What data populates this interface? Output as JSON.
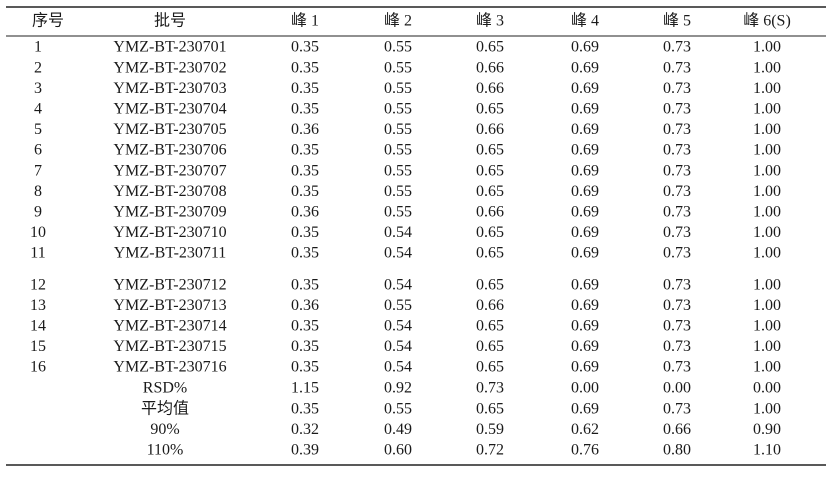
{
  "table": {
    "header": [
      "序号",
      "批号",
      "峰 1",
      "峰 2",
      "峰 3",
      "峰 4",
      "峰 5",
      "峰 6(S)"
    ],
    "rows": [
      [
        "1",
        "YMZ-BT-230701",
        "0.35",
        "0.55",
        "0.65",
        "0.69",
        "0.73",
        "1.00"
      ],
      [
        "2",
        "YMZ-BT-230702",
        "0.35",
        "0.55",
        "0.66",
        "0.69",
        "0.73",
        "1.00"
      ],
      [
        "3",
        "YMZ-BT-230703",
        "0.35",
        "0.55",
        "0.66",
        "0.69",
        "0.73",
        "1.00"
      ],
      [
        "4",
        "YMZ-BT-230704",
        "0.35",
        "0.55",
        "0.65",
        "0.69",
        "0.73",
        "1.00"
      ],
      [
        "5",
        "YMZ-BT-230705",
        "0.36",
        "0.55",
        "0.66",
        "0.69",
        "0.73",
        "1.00"
      ],
      [
        "6",
        "YMZ-BT-230706",
        "0.35",
        "0.55",
        "0.65",
        "0.69",
        "0.73",
        "1.00"
      ],
      [
        "7",
        "YMZ-BT-230707",
        "0.35",
        "0.55",
        "0.65",
        "0.69",
        "0.73",
        "1.00"
      ],
      [
        "8",
        "YMZ-BT-230708",
        "0.35",
        "0.55",
        "0.65",
        "0.69",
        "0.73",
        "1.00"
      ],
      [
        "9",
        "YMZ-BT-230709",
        "0.36",
        "0.55",
        "0.66",
        "0.69",
        "0.73",
        "1.00"
      ],
      [
        "10",
        "YMZ-BT-230710",
        "0.35",
        "0.54",
        "0.65",
        "0.69",
        "0.73",
        "1.00"
      ],
      [
        "11",
        "YMZ-BT-230711",
        "0.35",
        "0.54",
        "0.65",
        "0.69",
        "0.73",
        "1.00"
      ],
      [
        "12",
        "YMZ-BT-230712",
        "0.35",
        "0.54",
        "0.65",
        "0.69",
        "0.73",
        "1.00"
      ],
      [
        "13",
        "YMZ-BT-230713",
        "0.36",
        "0.55",
        "0.66",
        "0.69",
        "0.73",
        "1.00"
      ],
      [
        "14",
        "YMZ-BT-230714",
        "0.35",
        "0.54",
        "0.65",
        "0.69",
        "0.73",
        "1.00"
      ],
      [
        "15",
        "YMZ-BT-230715",
        "0.35",
        "0.54",
        "0.65",
        "0.69",
        "0.73",
        "1.00"
      ],
      [
        "16",
        "YMZ-BT-230716",
        "0.35",
        "0.54",
        "0.65",
        "0.69",
        "0.73",
        "1.00"
      ]
    ],
    "summary": [
      [
        "RSD%",
        "1.15",
        "0.92",
        "0.73",
        "0.00",
        "0.00",
        "0.00"
      ],
      [
        "平均值",
        "0.35",
        "0.55",
        "0.65",
        "0.69",
        "0.73",
        "1.00"
      ],
      [
        "90%",
        "0.32",
        "0.49",
        "0.59",
        "0.62",
        "0.66",
        "0.90"
      ],
      [
        "110%",
        "0.39",
        "0.60",
        "0.72",
        "0.76",
        "0.80",
        "1.10"
      ]
    ]
  }
}
